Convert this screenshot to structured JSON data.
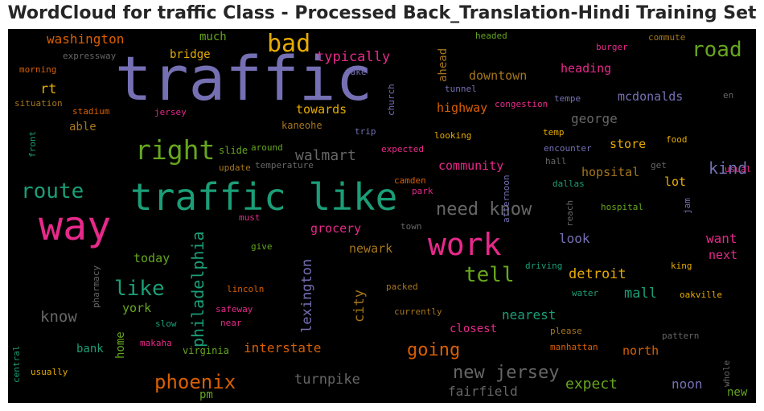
{
  "title": "WordCloud for traffic Class - Processed Back_Translation-Hindi Training Set",
  "chart_data": {
    "type": "wordcloud",
    "words": [
      {
        "text": "traffic",
        "color": "#7570b3"
      },
      {
        "text": "traffic like",
        "color": "#1b9e77"
      },
      {
        "text": "way",
        "color": "#e7298a"
      },
      {
        "text": "work",
        "color": "#e7298a"
      },
      {
        "text": "bad",
        "color": "#e6ab02"
      },
      {
        "text": "right",
        "color": "#66a61e"
      },
      {
        "text": "route",
        "color": "#1b9e77"
      },
      {
        "text": "road",
        "color": "#66a61e"
      },
      {
        "text": "tell",
        "color": "#66a61e"
      },
      {
        "text": "like",
        "color": "#1b9e77"
      },
      {
        "text": "phoenix",
        "color": "#d95f02"
      },
      {
        "text": "new jersey",
        "color": "#666666"
      },
      {
        "text": "going",
        "color": "#d95f02"
      },
      {
        "text": "need know",
        "color": "#666666"
      },
      {
        "text": "philadelphia",
        "color": "#1b9e77"
      },
      {
        "text": "kind",
        "color": "#7570b3"
      },
      {
        "text": "know",
        "color": "#666666"
      },
      {
        "text": "walmart",
        "color": "#666666"
      },
      {
        "text": "washington",
        "color": "#d95f02"
      },
      {
        "text": "typically",
        "color": "#e7298a"
      },
      {
        "text": "rt",
        "color": "#e6ab02"
      },
      {
        "text": "downtown",
        "color": "#a6761d"
      },
      {
        "text": "heading",
        "color": "#e7298a"
      },
      {
        "text": "mcdonalds",
        "color": "#7570b3"
      },
      {
        "text": "george",
        "color": "#666666"
      },
      {
        "text": "towards",
        "color": "#e6ab02"
      },
      {
        "text": "highway",
        "color": "#d95f02"
      },
      {
        "text": "store",
        "color": "#e6ab02"
      },
      {
        "text": "hopsital",
        "color": "#a6761d"
      },
      {
        "text": "community",
        "color": "#e7298a"
      },
      {
        "text": "lot",
        "color": "#e6ab02"
      },
      {
        "text": "grocery",
        "color": "#e7298a"
      },
      {
        "text": "newark",
        "color": "#a6761d"
      },
      {
        "text": "look",
        "color": "#7570b3"
      },
      {
        "text": "want",
        "color": "#e7298a"
      },
      {
        "text": "next",
        "color": "#e7298a"
      },
      {
        "text": "detroit",
        "color": "#e6ab02"
      },
      {
        "text": "mall",
        "color": "#1b9e77"
      },
      {
        "text": "city",
        "color": "#a6761d"
      },
      {
        "text": "lexington",
        "color": "#7570b3"
      },
      {
        "text": "nearest",
        "color": "#1b9e77"
      },
      {
        "text": "closest",
        "color": "#e7298a"
      },
      {
        "text": "interstate",
        "color": "#d95f02"
      },
      {
        "text": "north",
        "color": "#d95f02"
      },
      {
        "text": "expect",
        "color": "#66a61e"
      },
      {
        "text": "noon",
        "color": "#7570b3"
      },
      {
        "text": "turnpike",
        "color": "#666666"
      },
      {
        "text": "fairfield",
        "color": "#666666"
      },
      {
        "text": "today",
        "color": "#66a61e"
      },
      {
        "text": "york",
        "color": "#66a61e"
      },
      {
        "text": "bank",
        "color": "#1b9e77"
      },
      {
        "text": "home",
        "color": "#66a61e"
      },
      {
        "text": "pm",
        "color": "#66a61e"
      },
      {
        "text": "new",
        "color": "#66a61e"
      },
      {
        "text": "much",
        "color": "#66a61e"
      },
      {
        "text": "bridge",
        "color": "#e6ab02"
      },
      {
        "text": "able",
        "color": "#a6761d"
      },
      {
        "text": "ahead",
        "color": "#a6761d"
      },
      {
        "text": "expressway",
        "color": "#666666"
      },
      {
        "text": "morning",
        "color": "#d95f02"
      },
      {
        "text": "situation",
        "color": "#a6761d"
      },
      {
        "text": "stadium",
        "color": "#d95f02"
      },
      {
        "text": "jersey",
        "color": "#e7298a"
      },
      {
        "text": "kaneohe",
        "color": "#a6761d"
      },
      {
        "text": "front",
        "color": "#1b9e77"
      },
      {
        "text": "slide",
        "color": "#66a61e"
      },
      {
        "text": "around",
        "color": "#66a61e"
      },
      {
        "text": "update",
        "color": "#a6761d"
      },
      {
        "text": "temperature",
        "color": "#666666"
      },
      {
        "text": "church",
        "color": "#7570b3"
      },
      {
        "text": "take",
        "color": "#7570b3"
      },
      {
        "text": "tunnel",
        "color": "#7570b3"
      },
      {
        "text": "headed",
        "color": "#66a61e"
      },
      {
        "text": "burger",
        "color": "#e7298a"
      },
      {
        "text": "commute",
        "color": "#a6761d"
      },
      {
        "text": "congestion",
        "color": "#e7298a"
      },
      {
        "text": "tempe",
        "color": "#7570b3"
      },
      {
        "text": "en",
        "color": "#666666"
      },
      {
        "text": "trip",
        "color": "#7570b3"
      },
      {
        "text": "looking",
        "color": "#e6ab02"
      },
      {
        "text": "temp",
        "color": "#e6ab02"
      },
      {
        "text": "food",
        "color": "#e6ab02"
      },
      {
        "text": "expected",
        "color": "#e7298a"
      },
      {
        "text": "encounter",
        "color": "#7570b3"
      },
      {
        "text": "hall",
        "color": "#666666"
      },
      {
        "text": "get",
        "color": "#666666"
      },
      {
        "text": "usual",
        "color": "#e7298a"
      },
      {
        "text": "camden",
        "color": "#d95f02"
      },
      {
        "text": "park",
        "color": "#e7298a"
      },
      {
        "text": "afternoon",
        "color": "#7570b3"
      },
      {
        "text": "dallas",
        "color": "#1b9e77"
      },
      {
        "text": "hospital",
        "color": "#66a61e"
      },
      {
        "text": "reach",
        "color": "#666666"
      },
      {
        "text": "jam",
        "color": "#7570b3"
      },
      {
        "text": "must",
        "color": "#e7298a"
      },
      {
        "text": "town",
        "color": "#666666"
      },
      {
        "text": "give",
        "color": "#66a61e"
      },
      {
        "text": "king",
        "color": "#e6ab02"
      },
      {
        "text": "driving",
        "color": "#1b9e77"
      },
      {
        "text": "pharmacy",
        "color": "#666666"
      },
      {
        "text": "lincoln",
        "color": "#d95f02"
      },
      {
        "text": "packed",
        "color": "#a6761d"
      },
      {
        "text": "water",
        "color": "#1b9e77"
      },
      {
        "text": "oakville",
        "color": "#e6ab02"
      },
      {
        "text": "safeway",
        "color": "#e7298a"
      },
      {
        "text": "currently",
        "color": "#a6761d"
      },
      {
        "text": "slow",
        "color": "#1b9e77"
      },
      {
        "text": "near",
        "color": "#e7298a"
      },
      {
        "text": "please",
        "color": "#a6761d"
      },
      {
        "text": "pattern",
        "color": "#666666"
      },
      {
        "text": "makaha",
        "color": "#e7298a"
      },
      {
        "text": "virginia",
        "color": "#66a61e"
      },
      {
        "text": "manhattan",
        "color": "#d95f02"
      },
      {
        "text": "central",
        "color": "#1b9e77"
      },
      {
        "text": "whole",
        "color": "#666666"
      },
      {
        "text": "usually",
        "color": "#e6ab02"
      }
    ]
  }
}
